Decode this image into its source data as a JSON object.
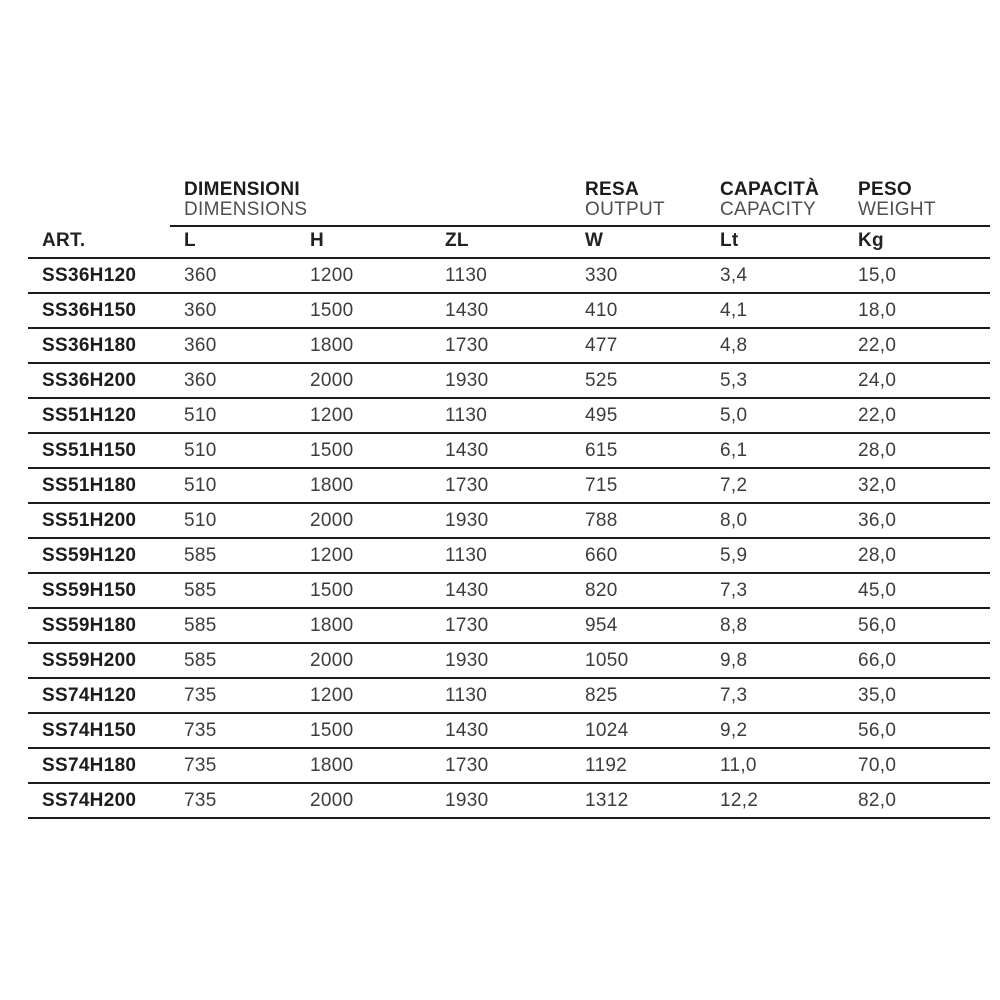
{
  "table": {
    "group_headers": [
      {
        "label": "DIMENSIONI",
        "sublabel": "DIMENSIONS"
      },
      {
        "label": "RESA",
        "sublabel": "OUTPUT"
      },
      {
        "label": "CAPACITÀ",
        "sublabel": "CAPACITY"
      },
      {
        "label": "PESO",
        "sublabel": "WEIGHT"
      }
    ],
    "columns": [
      "ART.",
      "L",
      "H",
      "ZL",
      "W",
      "Lt",
      "Kg"
    ],
    "rows": [
      [
        "SS36H120",
        "360",
        "1200",
        "1130",
        "330",
        "3,4",
        "15,0"
      ],
      [
        "SS36H150",
        "360",
        "1500",
        "1430",
        "410",
        "4,1",
        "18,0"
      ],
      [
        "SS36H180",
        "360",
        "1800",
        "1730",
        "477",
        "4,8",
        "22,0"
      ],
      [
        "SS36H200",
        "360",
        "2000",
        "1930",
        "525",
        "5,3",
        "24,0"
      ],
      [
        "SS51H120",
        "510",
        "1200",
        "1130",
        "495",
        "5,0",
        "22,0"
      ],
      [
        "SS51H150",
        "510",
        "1500",
        "1430",
        "615",
        "6,1",
        "28,0"
      ],
      [
        "SS51H180",
        "510",
        "1800",
        "1730",
        "715",
        "7,2",
        "32,0"
      ],
      [
        "SS51H200",
        "510",
        "2000",
        "1930",
        "788",
        "8,0",
        "36,0"
      ],
      [
        "SS59H120",
        "585",
        "1200",
        "1130",
        "660",
        "5,9",
        "28,0"
      ],
      [
        "SS59H150",
        "585",
        "1500",
        "1430",
        "820",
        "7,3",
        "45,0"
      ],
      [
        "SS59H180",
        "585",
        "1800",
        "1730",
        "954",
        "8,8",
        "56,0"
      ],
      [
        "SS59H200",
        "585",
        "2000",
        "1930",
        "1050",
        "9,8",
        "66,0"
      ],
      [
        "SS74H120",
        "735",
        "1200",
        "1130",
        "825",
        "7,3",
        "35,0"
      ],
      [
        "SS74H150",
        "735",
        "1500",
        "1430",
        "1024",
        "9,2",
        "56,0"
      ],
      [
        "SS74H180",
        "735",
        "1800",
        "1730",
        "1192",
        "11,0",
        "70,0"
      ],
      [
        "SS74H200",
        "735",
        "2000",
        "1930",
        "1312",
        "12,2",
        "82,0"
      ]
    ],
    "colors": {
      "line": "#1c1c1c",
      "header_text": "#1c1c1c",
      "subheader_text": "#4f4f4f",
      "data_text": "#3c3c3c",
      "background": "#ffffff"
    }
  }
}
